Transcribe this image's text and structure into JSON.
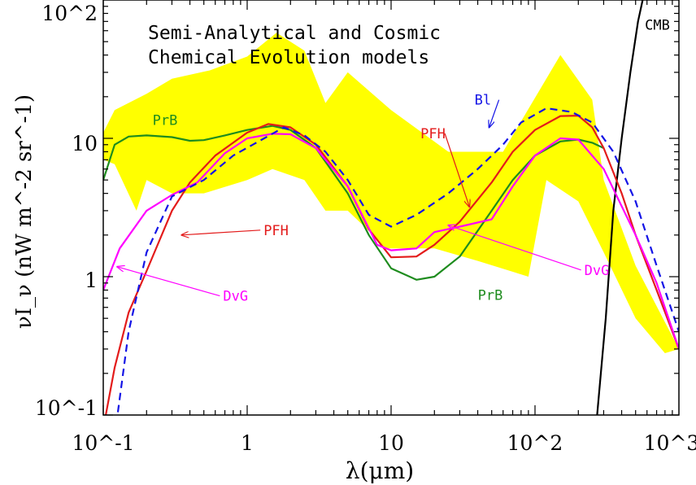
{
  "colors": {
    "band": "#ffff00",
    "PrB": "#1e8c1e",
    "PFH": "#e31b1b",
    "DvG": "#ff00ff",
    "Bl": "#1414e6",
    "CMB": "#000000"
  },
  "chart_data": {
    "type": "line",
    "xscale": "log",
    "yscale": "log",
    "xlim": [
      0.1,
      1000
    ],
    "ylim": [
      0.1,
      100
    ],
    "xlabel": "λ(μm)",
    "ylabel": "νI_ν (nW m^-2 sr^-1)",
    "title_lines": [
      "Semi-Analytical and Cosmic",
      "Chemical Evolution models"
    ],
    "x_tick_labels": [
      "10^-1",
      "1",
      "10",
      "10^2",
      "10^3"
    ],
    "y_tick_labels": [
      "10^-1",
      "1",
      "10",
      "10^2"
    ],
    "band": [
      [
        0.1,
        11
      ],
      [
        0.12,
        16
      ],
      [
        0.2,
        21
      ],
      [
        0.3,
        27
      ],
      [
        0.55,
        31
      ],
      [
        1.0,
        39
      ],
      [
        1.6,
        58
      ],
      [
        2.5,
        43
      ],
      [
        3.5,
        18
      ],
      [
        5.0,
        30
      ],
      [
        10,
        16
      ],
      [
        25,
        8
      ],
      [
        60,
        8
      ],
      [
        150,
        40
      ],
      [
        250,
        19
      ],
      [
        300,
        5
      ],
      [
        500,
        1.2
      ],
      [
        1000,
        0.3
      ],
      [
        800,
        0.28
      ],
      [
        500,
        0.5
      ],
      [
        300,
        1.5
      ],
      [
        200,
        3.5
      ],
      [
        120,
        5
      ],
      [
        90,
        1.0
      ],
      [
        40,
        1.3
      ],
      [
        20,
        1.6
      ],
      [
        9,
        1.6
      ],
      [
        7.5,
        2.0
      ],
      [
        5,
        3.0
      ],
      [
        3.5,
        3.0
      ],
      [
        2.5,
        5.0
      ],
      [
        1.5,
        6.0
      ],
      [
        1.0,
        5.0
      ],
      [
        0.5,
        4.0
      ],
      [
        0.3,
        4.0
      ],
      [
        0.2,
        5.0
      ],
      [
        0.17,
        3.0
      ],
      [
        0.12,
        6.5
      ],
      [
        0.1,
        7.0
      ]
    ],
    "series": [
      {
        "name": "CMB",
        "points": [
          [
            270,
            0.1
          ],
          [
            310,
            0.5
          ],
          [
            350,
            3
          ],
          [
            400,
            10
          ],
          [
            460,
            30
          ],
          [
            520,
            70
          ],
          [
            560,
            100
          ]
        ]
      },
      {
        "name": "PrB",
        "points": [
          [
            0.1,
            5
          ],
          [
            0.12,
            9
          ],
          [
            0.15,
            10.3
          ],
          [
            0.2,
            10.5
          ],
          [
            0.3,
            10.2
          ],
          [
            0.4,
            9.6
          ],
          [
            0.5,
            9.7
          ],
          [
            0.7,
            10.5
          ],
          [
            1.0,
            11.5
          ],
          [
            1.5,
            12.3
          ],
          [
            2.0,
            11.5
          ],
          [
            3.0,
            8.5
          ],
          [
            5.0,
            4.0
          ],
          [
            7.0,
            2.0
          ],
          [
            10,
            1.15
          ],
          [
            15,
            0.95
          ],
          [
            20,
            1.0
          ],
          [
            30,
            1.4
          ],
          [
            50,
            3.0
          ],
          [
            70,
            5.0
          ],
          [
            100,
            7.5
          ],
          [
            150,
            9.5
          ],
          [
            200,
            9.8
          ],
          [
            250,
            9.3
          ],
          [
            300,
            8.5
          ]
        ]
      },
      {
        "name": "PFH",
        "points": [
          [
            0.1,
            0.08
          ],
          [
            0.12,
            0.22
          ],
          [
            0.15,
            0.55
          ],
          [
            0.2,
            1.1
          ],
          [
            0.3,
            3.0
          ],
          [
            0.4,
            4.8
          ],
          [
            0.6,
            7.5
          ],
          [
            1.0,
            11.0
          ],
          [
            1.4,
            12.7
          ],
          [
            2.0,
            12.0
          ],
          [
            3.0,
            9.0
          ],
          [
            5.0,
            4.5
          ],
          [
            7.0,
            2.2
          ],
          [
            10,
            1.38
          ],
          [
            15,
            1.4
          ],
          [
            20,
            1.7
          ],
          [
            30,
            2.5
          ],
          [
            50,
            4.8
          ],
          [
            70,
            8.0
          ],
          [
            100,
            11.5
          ],
          [
            150,
            14.5
          ],
          [
            200,
            14.6
          ],
          [
            250,
            12.0
          ],
          [
            300,
            8.5
          ],
          [
            400,
            4.0
          ],
          [
            500,
            2.0
          ],
          [
            700,
            0.8
          ],
          [
            1000,
            0.3
          ]
        ]
      },
      {
        "name": "DvG",
        "points": [
          [
            0.1,
            0.8
          ],
          [
            0.13,
            1.6
          ],
          [
            0.2,
            3.0
          ],
          [
            0.3,
            3.9
          ],
          [
            0.45,
            4.8
          ],
          [
            0.7,
            7.8
          ],
          [
            1.0,
            10.0
          ],
          [
            1.5,
            10.8
          ],
          [
            2.0,
            10.7
          ],
          [
            3.0,
            8.5
          ],
          [
            5.0,
            4.5
          ],
          [
            8.0,
            1.7
          ],
          [
            10,
            1.55
          ],
          [
            15,
            1.6
          ],
          [
            20,
            2.1
          ],
          [
            30,
            2.3
          ],
          [
            50,
            2.6
          ],
          [
            70,
            4.5
          ],
          [
            100,
            7.5
          ],
          [
            150,
            10.0
          ],
          [
            200,
            9.8
          ],
          [
            300,
            6.0
          ],
          [
            500,
            2.0
          ],
          [
            700,
            0.9
          ],
          [
            1000,
            0.3
          ]
        ]
      },
      {
        "name": "Bl",
        "points": [
          [
            0.12,
            0.07
          ],
          [
            0.15,
            0.4
          ],
          [
            0.2,
            1.5
          ],
          [
            0.3,
            3.8
          ],
          [
            0.5,
            5.0
          ],
          [
            0.8,
            7.5
          ],
          [
            1.2,
            9.5
          ],
          [
            1.8,
            12.0
          ],
          [
            2.5,
            10.5
          ],
          [
            3.5,
            8.0
          ],
          [
            5.0,
            5.0
          ],
          [
            7.0,
            2.8
          ],
          [
            10,
            2.3
          ],
          [
            15,
            2.8
          ],
          [
            25,
            4.0
          ],
          [
            40,
            6.0
          ],
          [
            60,
            9.0
          ],
          [
            80,
            13.0
          ],
          [
            120,
            16.5
          ],
          [
            180,
            15.5
          ],
          [
            250,
            13.0
          ],
          [
            350,
            8.0
          ],
          [
            500,
            3.5
          ],
          [
            700,
            1.2
          ],
          [
            1000,
            0.4
          ]
        ]
      }
    ],
    "annotations": [
      {
        "text": "PrB",
        "series": "PrB",
        "x": 0.22,
        "y": 12.5
      },
      {
        "text": "PrB",
        "series": "PrB",
        "x": 40,
        "y": 0.68
      },
      {
        "text": "PFH",
        "series": "PFH",
        "x": 1.3,
        "y": 2.0,
        "arrow_to": [
          0.35,
          2.0
        ]
      },
      {
        "text": "PFH",
        "series": "PFH",
        "x": 16,
        "y": 10.0,
        "arrow_to": [
          35,
          3.2
        ]
      },
      {
        "text": "DvG",
        "series": "DvG",
        "x": 0.68,
        "y": 0.67,
        "arrow_to": [
          0.125,
          1.18
        ]
      },
      {
        "text": "DvG",
        "series": "DvG",
        "x": 220,
        "y": 1.03,
        "arrow_to": [
          25,
          2.35
        ]
      },
      {
        "text": "Bl",
        "series": "Bl",
        "x": 38,
        "y": 17.5,
        "arrow_to": [
          48,
          12.0
        ]
      },
      {
        "text": "CMB",
        "series": "CMB",
        "x": 580,
        "y": 61
      }
    ]
  }
}
